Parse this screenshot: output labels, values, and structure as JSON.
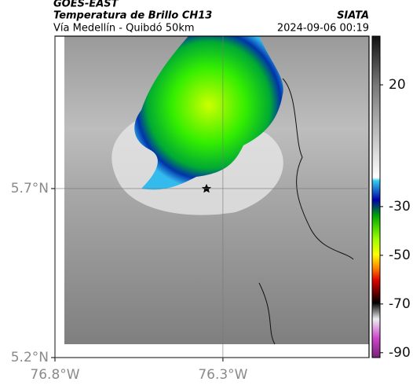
{
  "chart_data": {
    "type": "map",
    "title": "GOES-EAST",
    "subtitle": "Temperatura de Brillo CH13",
    "route": "Vía Medellín - Quibdó 50km",
    "source": "SIATA",
    "datetime": "2024-09-06 00:19",
    "xlim": [
      -76.8,
      -75.865
    ],
    "ylim": [
      5.2,
      6.151
    ],
    "xticks": [
      {
        "value": -76.8,
        "label": "76.8°W"
      },
      {
        "value": -76.3,
        "label": "76.3°W"
      }
    ],
    "yticks": [
      {
        "value": 5.2,
        "label": "5.2°N"
      },
      {
        "value": 5.7,
        "label": "5.7°N"
      }
    ],
    "grid": true,
    "colorbar": {
      "lim": [
        -92,
        40
      ],
      "ticks": [
        20,
        -30,
        -50,
        -70,
        -90
      ]
    }
  }
}
